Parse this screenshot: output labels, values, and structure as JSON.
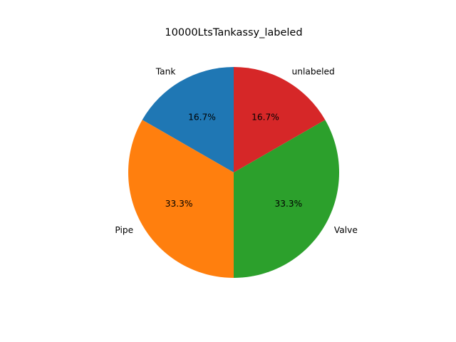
{
  "chart_data": {
    "type": "pie",
    "title": "10000LtsTankassy_labeled",
    "slices": [
      {
        "label": "Tank",
        "value": 16.7,
        "pct_label": "16.7%",
        "color": "#1f77b4"
      },
      {
        "label": "Pipe",
        "value": 33.3,
        "pct_label": "33.3%",
        "color": "#ff7f0e"
      },
      {
        "label": "Valve",
        "value": 33.3,
        "pct_label": "33.3%",
        "color": "#2ca02c"
      },
      {
        "label": "unlabeled",
        "value": 16.7,
        "pct_label": "16.7%",
        "color": "#d62728"
      }
    ],
    "start_angle_deg": 90,
    "direction": "counterclockwise",
    "legend": "none"
  }
}
